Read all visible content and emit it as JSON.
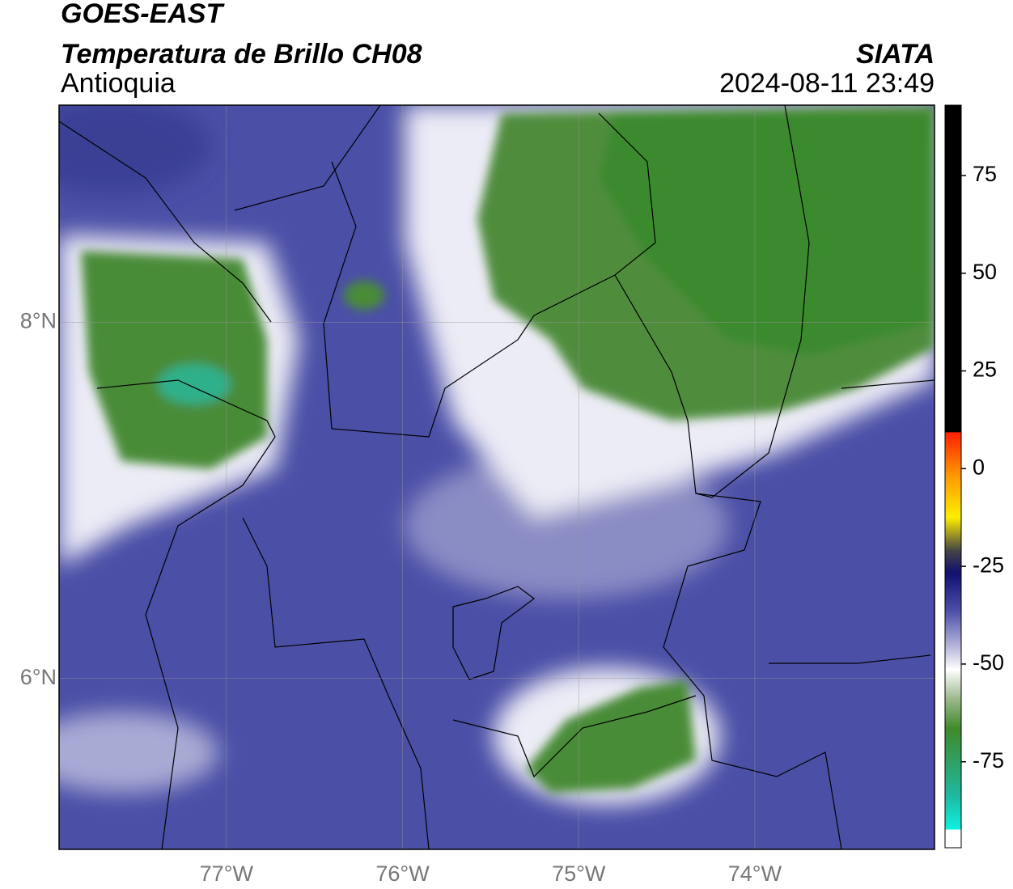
{
  "header": {
    "title": "GOES-EAST",
    "subtitle": "Temperatura de Brillo CH08",
    "source": "SIATA",
    "region": "Antioquia",
    "datetime": "2024-08-11 23:49"
  },
  "map": {
    "xlim": [
      -77.95,
      -72.98
    ],
    "ylim": [
      5.04,
      9.22
    ],
    "xticks": [
      {
        "value": -77,
        "label": "77°W"
      },
      {
        "value": -76,
        "label": "76°W"
      },
      {
        "value": -75,
        "label": "75°W"
      },
      {
        "value": -74,
        "label": "74°W"
      }
    ],
    "yticks": [
      {
        "value": 6,
        "label": "6°N"
      },
      {
        "value": 8,
        "label": "8°N"
      }
    ],
    "grid": true
  },
  "colorbar": {
    "lim": [
      -97,
      93
    ],
    "ticks": [
      -75,
      -50,
      -25,
      0,
      25,
      50,
      75
    ]
  }
}
